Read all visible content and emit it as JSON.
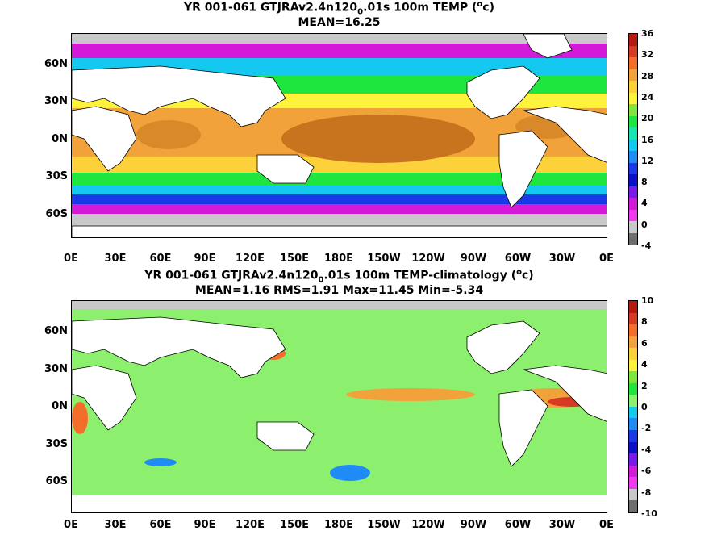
{
  "panel_top": {
    "title_pre": "YR 001-061 GTJRAv2.4n120",
    "title_sub": "0",
    "title_post": ".01s 100m TEMP (",
    "title_sup": "o",
    "title_end": "c)",
    "stats": "MEAN=16.25",
    "colorbar_labels": [
      "36",
      "32",
      "28",
      "24",
      "20",
      "16",
      "12",
      "8",
      "4",
      "0",
      "-4"
    ],
    "colorbar_colors": [
      "#b21a12",
      "#d63a22",
      "#f26e2a",
      "#f2a23a",
      "#fdd13a",
      "#fff23a",
      "#7ee63e",
      "#1ee63e",
      "#18e6b2",
      "#14c8f0",
      "#1e8cf4",
      "#1a3ae8",
      "#0a10c8",
      "#7a1ae8",
      "#d21ad8",
      "#f03af0",
      "#c8c8c8",
      "#6e6e6e"
    ]
  },
  "panel_bottom": {
    "title_pre": "YR 001-061 GTJRAv2.4n120",
    "title_sub": "0",
    "title_post": ".01s 100m TEMP-climatology (",
    "title_sup": "o",
    "title_end": "c)",
    "stats": "MEAN=1.16   RMS=1.91   Max=11.45   Min=-5.34",
    "colorbar_labels": [
      "10",
      "8",
      "6",
      "4",
      "2",
      "0",
      "-2",
      "-4",
      "-6",
      "-8",
      "-10"
    ],
    "colorbar_colors": [
      "#b21a12",
      "#d63a22",
      "#f26e2a",
      "#f2a23a",
      "#fdd13a",
      "#fff23a",
      "#7ee63e",
      "#1ee63e",
      "#8cf06e",
      "#14c8f0",
      "#1e8cf4",
      "#1a3ae8",
      "#0a10c8",
      "#7a1ae8",
      "#d21ad8",
      "#f03af0",
      "#c8c8c8",
      "#6e6e6e"
    ]
  },
  "lat_labels": [
    "60N",
    "30N",
    "0N",
    "30S",
    "60S"
  ],
  "lon_labels": [
    "0E",
    "30E",
    "60E",
    "90E",
    "120E",
    "150E",
    "180E",
    "150W",
    "120W",
    "90W",
    "60W",
    "30W",
    "0E"
  ]
}
